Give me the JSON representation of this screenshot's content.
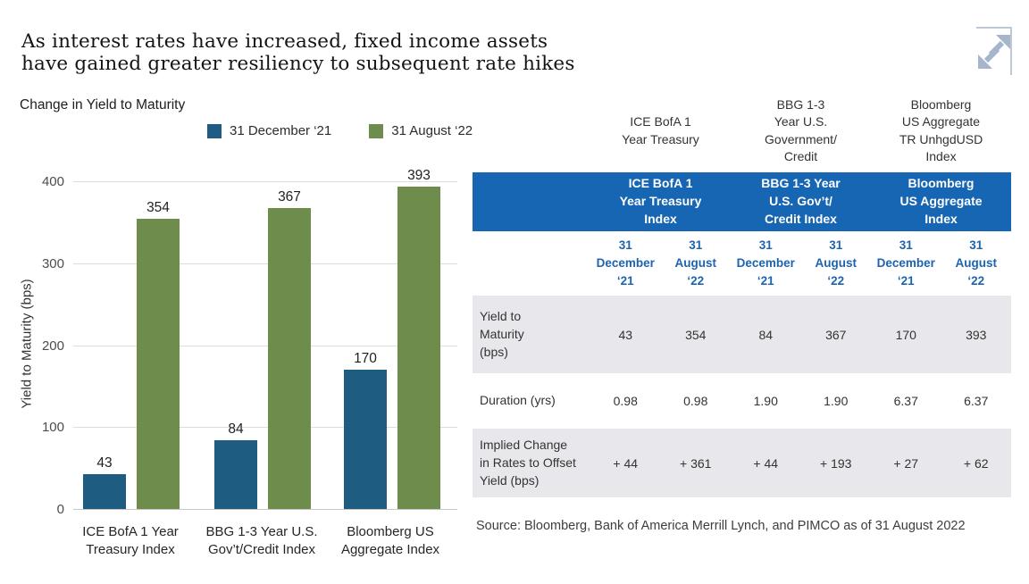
{
  "page": {
    "title": "As interest rates have increased, fixed income assets\nhave gained greater resiliency to subsequent rate hikes"
  },
  "chart": {
    "subtitle": "Change in Yield to Maturity",
    "ylabel": "Yield to Maturity (bps)",
    "yticks": [
      "400",
      "300",
      "200",
      "100",
      "0"
    ],
    "xtick_labels": [
      "ICE BofA 1 Year\nTreasury Index",
      "BBG 1-3 Year U.S.\nGov’t/Credit Index",
      "Bloomberg US\nAggregate Index"
    ]
  },
  "chart_data": {
    "type": "bar",
    "title": "Change in Yield to Maturity",
    "categories": [
      "ICE BofA 1 Year Treasury Index",
      "BBG 1-3 Year U.S. Gov't/Credit Index",
      "Bloomberg US Aggregate Index"
    ],
    "series": [
      {
        "name": "31 December ‘21",
        "color": "#1f5c82",
        "values": [
          43,
          84,
          170
        ]
      },
      {
        "name": "31 August ‘22",
        "color": "#6e8c4b",
        "values": [
          354,
          367,
          393
        ]
      }
    ],
    "xlabel": "",
    "ylabel": "Yield to Maturity (bps)",
    "ylim": [
      0,
      400
    ],
    "ytick_step": 100,
    "grid": true,
    "legend_position": "top",
    "bar_labels": true
  },
  "table": {
    "pre_headers": [
      "ICE BofA 1\nYear Treasury",
      "BBG 1-3\nYear U.S.\nGovernment/\nCredit",
      "Bloomberg\nUS Aggregate\nTR UnhgdUSD\nIndex"
    ],
    "group_headers": [
      "ICE BofA 1\nYear Treasury\nIndex",
      "BBG 1-3 Year\nU.S. Gov’t/\nCredit Index",
      "Bloomberg\nUS Aggregate\nIndex"
    ],
    "date_headers": [
      "31\nDecember\n‘21",
      "31\nAugust\n‘22",
      "31\nDecember\n‘21",
      "31\nAugust\n‘22",
      "31\nDecember\n‘21",
      "31\nAugust\n‘22"
    ],
    "rows": [
      {
        "label": "Yield to\nMaturity\n(bps)",
        "values": [
          "43",
          "354",
          "84",
          "367",
          "170",
          "393"
        ]
      },
      {
        "label": "Duration (yrs)",
        "values": [
          "0.98",
          "0.98",
          "1.90",
          "1.90",
          "6.37",
          "6.37"
        ]
      },
      {
        "label": "Implied Change\nin Rates to Offset\nYield (bps)",
        "values": [
          "+ 44",
          "+ 361",
          "+ 44",
          "+ 193",
          "+ 27",
          "+ 62"
        ]
      }
    ],
    "source": "Source: Bloomberg, Bank of America Merrill Lynch, and PIMCO as of 31 August 2022"
  },
  "colors": {
    "bar_dec21": "#1f5c82",
    "bar_aug22": "#6e8c4b",
    "table_header_bg": "#1766b3",
    "table_row_alt_bg": "#e8e8ec",
    "date_text": "#1d63ae",
    "gridline": "#dcdcdc",
    "axis_line": "#c6c6c6",
    "expand_icon": "#a6b5cb"
  }
}
